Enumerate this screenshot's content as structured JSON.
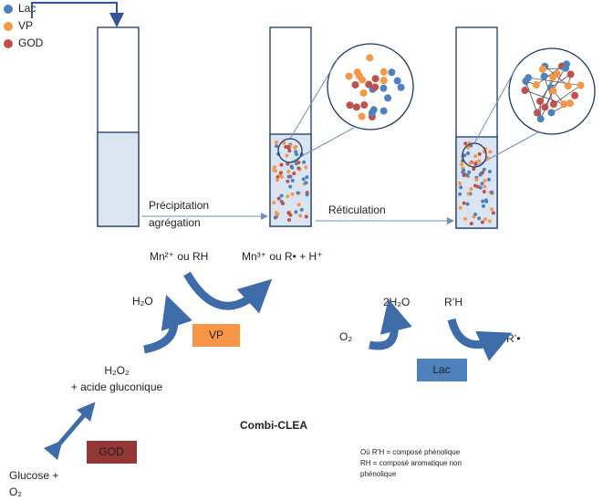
{
  "legend": {
    "items": [
      "Lac",
      "VP",
      "GOD"
    ]
  },
  "steps": {
    "step1": [
      "Précipitation",
      "agrégation"
    ],
    "step2": "Réticulation"
  },
  "vp_cycle": {
    "substrate": "Mn²⁺ ou RH",
    "product": "Mn³⁺ ou R• + H⁺",
    "water": "H₂O",
    "enzyme": "VP",
    "peroxide": [
      "H₂O₂",
      "+ acide gluconique"
    ]
  },
  "god_cycle": {
    "substrate": [
      "Glucose +",
      "O₂"
    ],
    "enzyme": "GOD"
  },
  "lac_cycle": {
    "oxygen": "O₂",
    "water": "2H₂O",
    "substrate": "R’H",
    "product": "R’•",
    "enzyme": "Lac"
  },
  "title": "Combi-CLEA",
  "footnote": [
    "Où R’H = composé phénolique",
    "RH = composé aromatique non",
    "phénolique"
  ]
}
